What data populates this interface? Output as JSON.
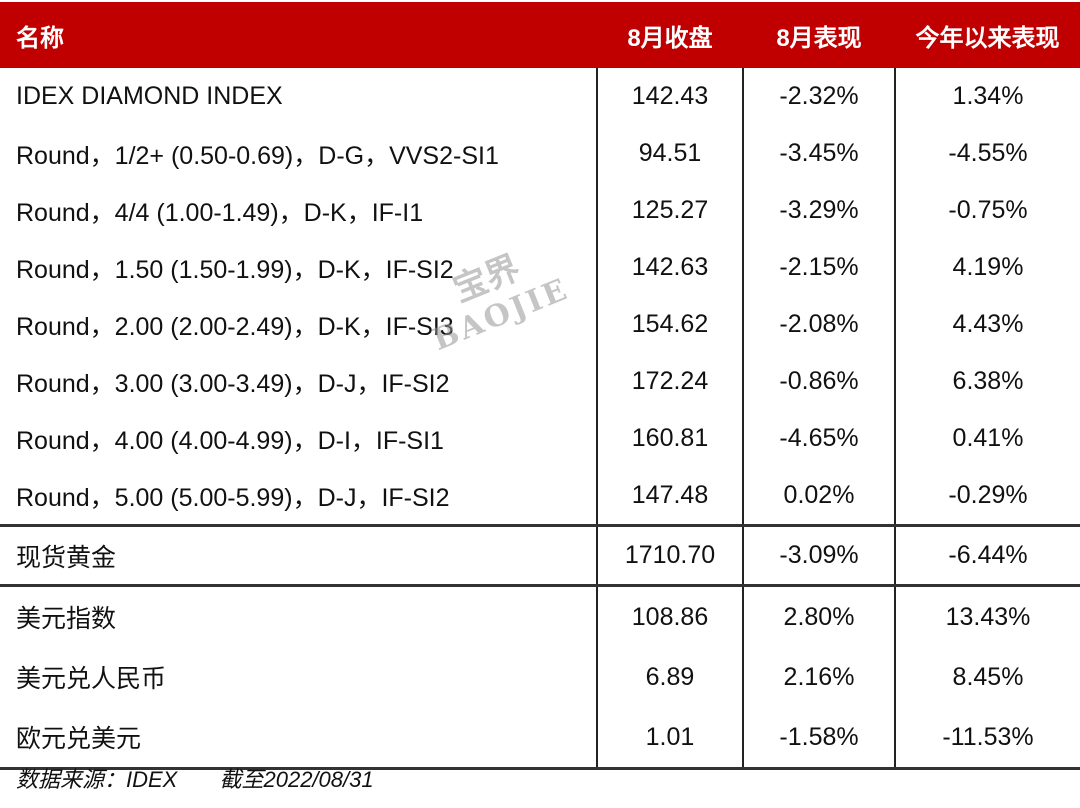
{
  "header": {
    "name": "名称",
    "close": "8月收盘",
    "month_perf": "8月表现",
    "ytd_perf": "今年以来表现"
  },
  "groups": [
    [
      {
        "name": "IDEX DIAMOND INDEX",
        "close": "142.43",
        "month": "-2.32%",
        "ytd": "1.34%"
      },
      {
        "name": "Round，1/2+ (0.50-0.69)，D-G，VVS2-SI1",
        "close": "94.51",
        "month": "-3.45%",
        "ytd": "-4.55%"
      },
      {
        "name": "Round，4/4 (1.00-1.49)，D-K，IF-I1",
        "close": "125.27",
        "month": "-3.29%",
        "ytd": "-0.75%"
      },
      {
        "name": "Round，1.50 (1.50-1.99)，D-K，IF-SI2",
        "close": "142.63",
        "month": "-2.15%",
        "ytd": "4.19%"
      },
      {
        "name": "Round，2.00 (2.00-2.49)，D-K，IF-SI3",
        "close": "154.62",
        "month": "-2.08%",
        "ytd": "4.43%"
      },
      {
        "name": "Round，3.00 (3.00-3.49)，D-J，IF-SI2",
        "close": "172.24",
        "month": "-0.86%",
        "ytd": "6.38%"
      },
      {
        "name": "Round，4.00 (4.00-4.99)，D-I，IF-SI1",
        "close": "160.81",
        "month": "-4.65%",
        "ytd": "0.41%"
      },
      {
        "name": "Round，5.00 (5.00-5.99)，D-J，IF-SI2",
        "close": "147.48",
        "month": "0.02%",
        "ytd": "-0.29%"
      }
    ],
    [
      {
        "name": "现货黄金",
        "close": "1710.70",
        "month": "-3.09%",
        "ytd": "-6.44%"
      }
    ],
    [
      {
        "name": "美元指数",
        "close": "108.86",
        "month": "2.80%",
        "ytd": "13.43%"
      },
      {
        "name": "美元兑人民币",
        "close": "6.89",
        "month": "2.16%",
        "ytd": "8.45%"
      },
      {
        "name": "欧元兑美元",
        "close": "1.01",
        "month": "-1.58%",
        "ytd": "-11.53%"
      }
    ]
  ],
  "footer": {
    "source": "数据来源：IDEX",
    "date": "截至2022/08/31"
  },
  "watermark": {
    "cn": "宝界",
    "en": "BAOJIE"
  },
  "colors": {
    "header_bg": "#c00000",
    "header_text": "#ffffff"
  }
}
